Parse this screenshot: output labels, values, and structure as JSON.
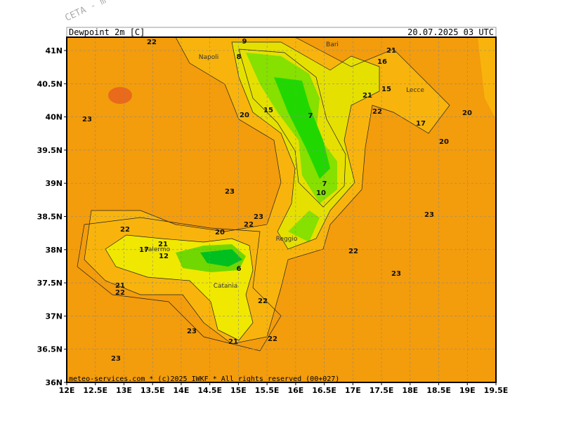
{
  "watermark": "CETA - m",
  "header": {
    "title": "Dewpoint_2m [C]",
    "timestamp": "20.07.2025 03 UTC"
  },
  "axes": {
    "x_ticks": [
      "12E",
      "12.5E",
      "13E",
      "13.5E",
      "14E",
      "14.5E",
      "15E",
      "15.5E",
      "16E",
      "16.5E",
      "17E",
      "17.5E",
      "18E",
      "18.5E",
      "19E",
      "19.5E"
    ],
    "y_ticks": [
      "36N",
      "36.5N",
      "37N",
      "37.5N",
      "38N",
      "38.5N",
      "39N",
      "39.5N",
      "40N",
      "40.5N",
      "41N"
    ]
  },
  "places": [
    "Napoli",
    "Bari",
    "Lecce",
    "Palermo",
    "Catania",
    "Reggio"
  ],
  "contour_labels": [
    "23",
    "23",
    "23",
    "23",
    "23",
    "22",
    "22",
    "22",
    "22",
    "22",
    "20",
    "20",
    "21",
    "16",
    "21",
    "22",
    "23",
    "20",
    "9",
    "8",
    "7",
    "7",
    "10",
    "21",
    "12",
    "21",
    "22",
    "23",
    "6",
    "22",
    "21",
    "20",
    "17",
    "15",
    "15",
    "17"
  ],
  "footer": "meteo-services.com * (c)2025 IWKF * All rights reserved (00+027)"
}
